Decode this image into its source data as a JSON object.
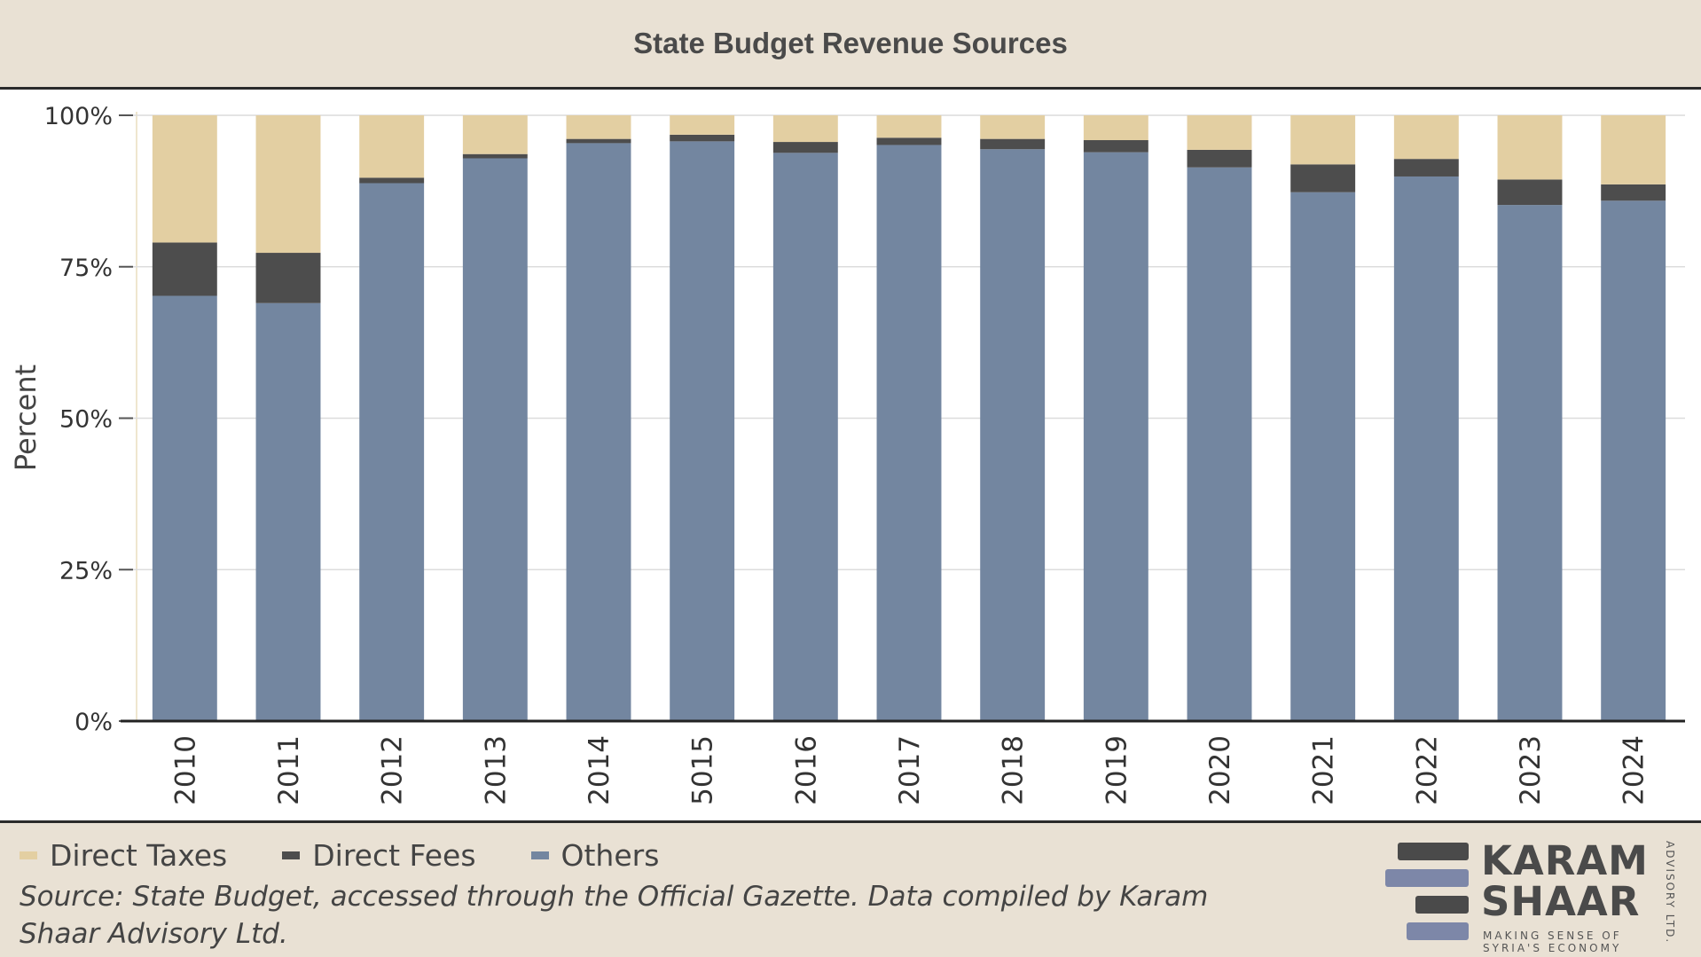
{
  "chart_data": {
    "type": "bar",
    "stacked": true,
    "title": "State Budget Revenue Sources",
    "ylabel": "Percent",
    "xlabel": "",
    "ylim": [
      0,
      100
    ],
    "yticks": [
      0,
      25,
      50,
      75,
      100
    ],
    "ytick_labels": [
      "0%",
      "25%",
      "50%",
      "75%",
      "100%"
    ],
    "categories": [
      "2010",
      "2011",
      "2012",
      "2013",
      "2014",
      "5015",
      "2016",
      "2017",
      "2018",
      "2019",
      "2020",
      "2021",
      "2022",
      "2023",
      "2024"
    ],
    "series": [
      {
        "name": "Others",
        "color": "#7386a0",
        "values": [
          70.2,
          69.0,
          88.8,
          92.9,
          95.4,
          95.7,
          93.8,
          95.1,
          94.4,
          93.9,
          91.4,
          87.3,
          89.9,
          85.2,
          85.9
        ]
      },
      {
        "name": "Direct Fees",
        "color": "#4d4d4d",
        "values": [
          8.8,
          8.3,
          0.9,
          0.7,
          0.7,
          1.1,
          1.8,
          1.2,
          1.7,
          2.0,
          2.9,
          4.6,
          2.9,
          4.2,
          2.7
        ]
      },
      {
        "name": "Direct Taxes",
        "color": "#e3cfa2",
        "values": [
          21.0,
          22.7,
          10.3,
          6.4,
          3.9,
          3.2,
          4.4,
          3.7,
          3.9,
          4.1,
          5.7,
          8.1,
          7.2,
          10.6,
          11.4
        ]
      }
    ],
    "grid": true,
    "legend_position": "bottom-left"
  },
  "legend": [
    {
      "label": "Direct Taxes",
      "color": "#e3cfa2"
    },
    {
      "label": "Direct Fees",
      "color": "#4d4d4d"
    },
    {
      "label": "Others",
      "color": "#7386a0"
    }
  ],
  "source": "Source: State Budget, accessed through the Official Gazette. Data compiled by Karam Shaar Advisory Ltd.",
  "logo": {
    "line1": "KARAM",
    "line2": "SHAAR",
    "tagline1": "MAKING SENSE OF",
    "tagline2": "SYRIA'S ECONOMY",
    "side": "ADVISORY LTD.",
    "colors": {
      "dark": "#4a4a4a",
      "blue": "#7d87a8"
    }
  }
}
